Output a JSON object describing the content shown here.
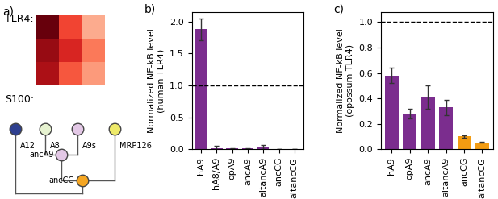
{
  "panel_a": {
    "label": "a)",
    "tlr4_label": "TLR4:",
    "cells": [
      [
        1.0,
        0.6,
        0.3
      ],
      [
        0.9,
        0.7,
        0.45
      ],
      [
        0.85,
        0.55,
        0.35
      ]
    ],
    "cell_range": [
      0,
      1
    ],
    "s100_label": "S100:",
    "leaves": [
      {
        "label": "A12",
        "color": "#2e3f8f"
      },
      {
        "label": "A8",
        "color": "#e6f2d0"
      },
      {
        "label": "A9s",
        "color": "#e3c8e6"
      },
      {
        "label": "MRP126",
        "color": "#eeea6a"
      }
    ],
    "ancestors": [
      {
        "label": "ancA9",
        "color": "#e3c8e6"
      },
      {
        "label": "ancCG",
        "color": "#f5a623"
      }
    ]
  },
  "chart_data": [
    {
      "type": "bar",
      "title": "b)",
      "y_label": "Normalized NF-kB level\n(human TLR4)",
      "categories": [
        "hA9",
        "hA8/A9",
        "opA9",
        "ancA9",
        "altancA9",
        "ancCG",
        "altancCG"
      ],
      "values": [
        1.88,
        0.02,
        0.01,
        0.01,
        0.03,
        0.005,
        0.005
      ],
      "errors": [
        0.17,
        0.03,
        0.005,
        0.005,
        0.03,
        0.003,
        0.003
      ],
      "colors": [
        "#7b2d8e",
        "#7b2d8e",
        "#7b2d8e",
        "#7b2d8e",
        "#7b2d8e",
        "#f39c12",
        "#f39c12"
      ],
      "reference_line": 1.0,
      "ylim": [
        0,
        2.15
      ],
      "yticks": [
        {
          "value": 0,
          "label": "0.0"
        },
        {
          "value": 0.5,
          "label": "0.5"
        },
        {
          "value": 1,
          "label": "1.0"
        },
        {
          "value": 1.5,
          "label": "1.5"
        },
        {
          "value": 2,
          "label": "2.0"
        }
      ]
    },
    {
      "type": "bar",
      "title": "c)",
      "y_label": "Normalized NF-kB level\n(opossum TLR4)",
      "categories": [
        "hA9",
        "opA9",
        "ancA9",
        "altancA9",
        "ancCG",
        "altancCG"
      ],
      "values": [
        0.58,
        0.28,
        0.41,
        0.33,
        0.1,
        0.055
      ],
      "errors": [
        0.06,
        0.04,
        0.09,
        0.06,
        0.01,
        0.005
      ],
      "colors": [
        "#7b2d8e",
        "#7b2d8e",
        "#7b2d8e",
        "#7b2d8e",
        "#f39c12",
        "#f39c12"
      ],
      "reference_line": 1.0,
      "ylim": [
        0,
        1.08
      ],
      "yticks": [
        {
          "value": 0,
          "label": "0.0"
        },
        {
          "value": 0.2,
          "label": "0.2"
        },
        {
          "value": 0.4,
          "label": "0.4"
        },
        {
          "value": 0.6,
          "label": "0.6"
        },
        {
          "value": 0.8,
          "label": "0.8"
        },
        {
          "value": 1,
          "label": "1.0"
        }
      ]
    }
  ]
}
